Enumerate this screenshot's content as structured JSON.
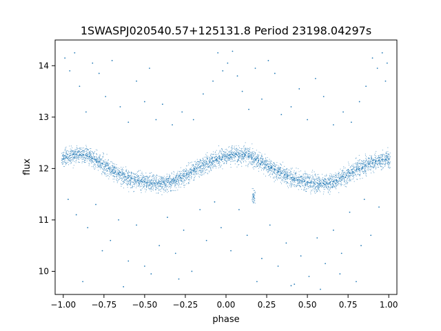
{
  "chart_data": {
    "type": "scatter",
    "title": "1SWASPJ020540.57+125131.8 Period 23198.04297s",
    "xlabel": "phase",
    "ylabel": "flux",
    "xlim": [
      -1.05,
      1.05
    ],
    "ylim": [
      9.55,
      14.5
    ],
    "grid": false,
    "legend": "none",
    "point_color": "#1f77b4",
    "x_ticks": [
      {
        "value": -1.0,
        "label": "−1.00"
      },
      {
        "value": -0.75,
        "label": "−0.75"
      },
      {
        "value": -0.5,
        "label": "−0.50"
      },
      {
        "value": -0.25,
        "label": "−0.25"
      },
      {
        "value": 0.0,
        "label": "0.00"
      },
      {
        "value": 0.25,
        "label": "0.25"
      },
      {
        "value": 0.5,
        "label": "0.50"
      },
      {
        "value": 0.75,
        "label": "0.75"
      },
      {
        "value": 1.0,
        "label": "1.00"
      }
    ],
    "y_ticks": [
      {
        "value": 10,
        "label": "10"
      },
      {
        "value": 11,
        "label": "11"
      },
      {
        "value": 12,
        "label": "12"
      },
      {
        "value": 13,
        "label": "13"
      },
      {
        "value": 14,
        "label": "14"
      }
    ],
    "series": [
      {
        "points": [
          [
            -1.0,
            12.18
          ],
          [
            -0.98,
            12.22
          ],
          [
            -0.96,
            12.25
          ],
          [
            -0.94,
            12.27
          ],
          [
            -0.92,
            12.28
          ],
          [
            -0.9,
            12.27
          ],
          [
            -0.88,
            12.27
          ],
          [
            -0.86,
            12.25
          ],
          [
            -0.84,
            12.23
          ],
          [
            -0.82,
            12.2
          ],
          [
            -0.8,
            12.17
          ],
          [
            -0.78,
            12.13
          ],
          [
            -0.76,
            12.1
          ],
          [
            -0.74,
            12.05
          ],
          [
            -0.72,
            12.0
          ],
          [
            -0.7,
            11.97
          ],
          [
            -0.68,
            11.93
          ],
          [
            -0.66,
            11.9
          ],
          [
            -0.64,
            11.87
          ],
          [
            -0.62,
            11.84
          ],
          [
            -0.6,
            11.82
          ],
          [
            -0.58,
            11.8
          ],
          [
            -0.56,
            11.78
          ],
          [
            -0.54,
            11.76
          ],
          [
            -0.52,
            11.75
          ],
          [
            -0.5,
            11.74
          ],
          [
            -0.48,
            11.73
          ],
          [
            -0.46,
            11.72
          ],
          [
            -0.44,
            11.72
          ],
          [
            -0.42,
            11.71
          ],
          [
            -0.4,
            11.71
          ],
          [
            -0.38,
            11.72
          ],
          [
            -0.36,
            11.73
          ],
          [
            -0.34,
            11.74
          ],
          [
            -0.32,
            11.76
          ],
          [
            -0.3,
            11.79
          ],
          [
            -0.28,
            11.82
          ],
          [
            -0.26,
            11.85
          ],
          [
            -0.24,
            11.89
          ],
          [
            -0.22,
            11.92
          ],
          [
            -0.2,
            11.96
          ],
          [
            -0.18,
            12.0
          ],
          [
            -0.16,
            12.03
          ],
          [
            -0.14,
            12.06
          ],
          [
            -0.12,
            12.09
          ],
          [
            -0.1,
            12.12
          ],
          [
            -0.08,
            12.15
          ],
          [
            -0.06,
            12.18
          ],
          [
            -0.04,
            12.2
          ],
          [
            -0.02,
            12.22
          ],
          [
            0.0,
            12.24
          ],
          [
            0.02,
            12.26
          ],
          [
            0.04,
            12.27
          ],
          [
            0.06,
            12.28
          ],
          [
            0.08,
            12.28
          ],
          [
            0.1,
            12.27
          ],
          [
            0.12,
            12.26
          ],
          [
            0.14,
            12.24
          ],
          [
            0.16,
            12.21
          ],
          [
            0.18,
            12.18
          ],
          [
            0.2,
            12.15
          ],
          [
            0.22,
            12.12
          ],
          [
            0.24,
            12.08
          ],
          [
            0.26,
            12.04
          ],
          [
            0.28,
            12.01
          ],
          [
            0.3,
            11.97
          ],
          [
            0.32,
            11.94
          ],
          [
            0.34,
            11.91
          ],
          [
            0.36,
            11.88
          ],
          [
            0.38,
            11.85
          ],
          [
            0.4,
            11.82
          ],
          [
            0.42,
            11.8
          ],
          [
            0.44,
            11.78
          ],
          [
            0.46,
            11.76
          ],
          [
            0.48,
            11.75
          ],
          [
            0.5,
            11.74
          ],
          [
            0.52,
            11.73
          ],
          [
            0.54,
            11.72
          ],
          [
            0.56,
            11.72
          ],
          [
            0.58,
            11.71
          ],
          [
            0.6,
            11.71
          ],
          [
            0.62,
            11.72
          ],
          [
            0.64,
            11.73
          ],
          [
            0.66,
            11.74
          ],
          [
            0.68,
            11.77
          ],
          [
            0.7,
            11.8
          ],
          [
            0.72,
            11.84
          ],
          [
            0.74,
            11.87
          ],
          [
            0.76,
            11.91
          ],
          [
            0.78,
            11.94
          ],
          [
            0.8,
            11.97
          ],
          [
            0.82,
            12.0
          ],
          [
            0.84,
            12.03
          ],
          [
            0.86,
            12.06
          ],
          [
            0.88,
            12.09
          ],
          [
            0.9,
            12.11
          ],
          [
            0.92,
            12.13
          ],
          [
            0.94,
            12.15
          ],
          [
            0.96,
            12.17
          ],
          [
            0.98,
            12.18
          ],
          [
            1.0,
            12.18
          ],
          [
            -0.99,
            14.15
          ],
          [
            -0.96,
            13.9
          ],
          [
            -0.93,
            14.25
          ],
          [
            -0.9,
            13.6
          ],
          [
            -0.86,
            13.1
          ],
          [
            -0.82,
            14.05
          ],
          [
            -0.78,
            13.85
          ],
          [
            -0.74,
            13.4
          ],
          [
            -0.7,
            14.1
          ],
          [
            -0.65,
            13.2
          ],
          [
            -0.6,
            12.9
          ],
          [
            -0.55,
            13.7
          ],
          [
            -0.5,
            13.3
          ],
          [
            -0.47,
            13.95
          ],
          [
            -0.43,
            12.95
          ],
          [
            -0.39,
            13.25
          ],
          [
            -0.33,
            12.85
          ],
          [
            -0.27,
            13.1
          ],
          [
            -0.2,
            12.95
          ],
          [
            -0.14,
            13.45
          ],
          [
            -0.08,
            13.7
          ],
          [
            -0.05,
            14.25
          ],
          [
            -0.02,
            13.9
          ],
          [
            0.01,
            14.05
          ],
          [
            0.04,
            14.28
          ],
          [
            0.07,
            13.8
          ],
          [
            0.1,
            13.5
          ],
          [
            0.14,
            13.15
          ],
          [
            0.18,
            13.95
          ],
          [
            0.22,
            13.35
          ],
          [
            0.26,
            14.1
          ],
          [
            0.3,
            13.85
          ],
          [
            0.34,
            13.05
          ],
          [
            0.4,
            13.2
          ],
          [
            0.45,
            13.55
          ],
          [
            0.5,
            12.95
          ],
          [
            0.55,
            13.75
          ],
          [
            0.6,
            13.4
          ],
          [
            0.66,
            12.85
          ],
          [
            0.72,
            13.1
          ],
          [
            0.77,
            12.9
          ],
          [
            0.82,
            13.3
          ],
          [
            0.86,
            13.6
          ],
          [
            0.9,
            14.15
          ],
          [
            0.93,
            13.95
          ],
          [
            0.96,
            14.25
          ],
          [
            0.98,
            13.7
          ],
          [
            0.99,
            14.05
          ],
          [
            -0.97,
            11.4
          ],
          [
            -0.92,
            11.1
          ],
          [
            -0.85,
            10.85
          ],
          [
            -0.8,
            11.3
          ],
          [
            -0.76,
            10.4
          ],
          [
            -0.71,
            10.6
          ],
          [
            -0.66,
            11.0
          ],
          [
            -0.6,
            10.2
          ],
          [
            -0.55,
            10.9
          ],
          [
            -0.5,
            10.1
          ],
          [
            -0.46,
            9.95
          ],
          [
            -0.41,
            10.5
          ],
          [
            -0.36,
            11.05
          ],
          [
            -0.31,
            10.35
          ],
          [
            -0.26,
            10.8
          ],
          [
            -0.21,
            10.0
          ],
          [
            -0.16,
            11.2
          ],
          [
            -0.12,
            10.6
          ],
          [
            -0.07,
            11.35
          ],
          [
            -0.03,
            10.85
          ],
          [
            0.03,
            10.4
          ],
          [
            0.08,
            11.2
          ],
          [
            0.13,
            10.7
          ],
          [
            0.17,
            11.45
          ],
          [
            0.22,
            10.25
          ],
          [
            0.27,
            10.9
          ],
          [
            0.32,
            10.1
          ],
          [
            0.37,
            10.55
          ],
          [
            0.42,
            9.75
          ],
          [
            0.46,
            10.3
          ],
          [
            0.51,
            9.9
          ],
          [
            0.56,
            10.65
          ],
          [
            0.61,
            10.15
          ],
          [
            0.66,
            10.8
          ],
          [
            0.71,
            10.35
          ],
          [
            0.76,
            11.15
          ],
          [
            0.8,
            9.8
          ],
          [
            0.85,
            11.4
          ],
          [
            0.89,
            10.7
          ],
          [
            0.94,
            11.25
          ],
          [
            -0.88,
            9.8
          ],
          [
            -0.63,
            9.7
          ],
          [
            -0.29,
            9.85
          ],
          [
            0.19,
            9.8
          ],
          [
            0.4,
            9.72
          ],
          [
            0.58,
            9.65
          ],
          [
            0.7,
            9.95
          ],
          [
            0.83,
            10.5
          ]
        ]
      }
    ]
  }
}
